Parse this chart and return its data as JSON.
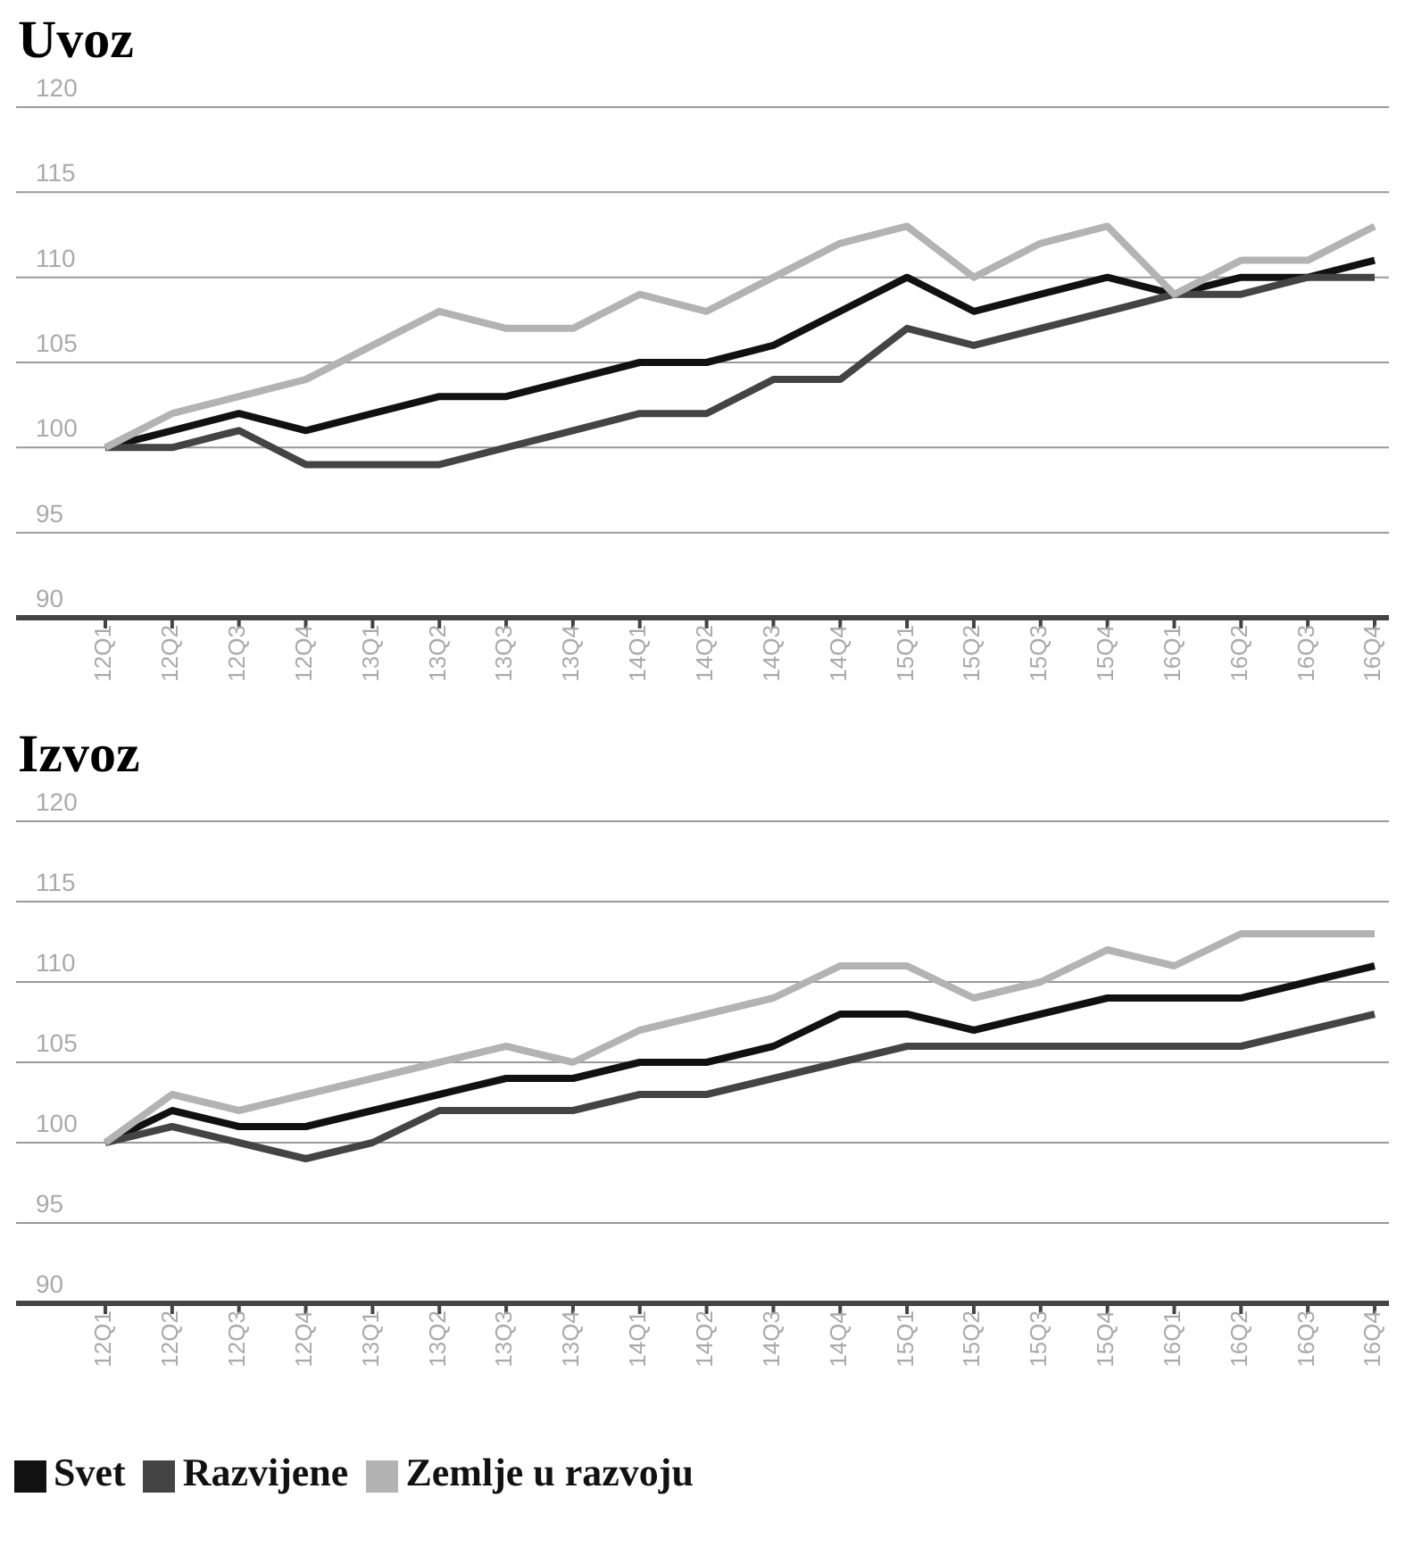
{
  "chart_data": [
    {
      "type": "line",
      "title": "Uvoz",
      "categories": [
        "12Q1",
        "12Q2",
        "12Q3",
        "12Q4",
        "13Q1",
        "13Q2",
        "13Q3",
        "13Q4",
        "14Q1",
        "14Q2",
        "14Q3",
        "14Q4",
        "15Q1",
        "15Q2",
        "15Q3",
        "15Q4",
        "16Q1",
        "16Q2",
        "16Q3",
        "16Q4"
      ],
      "series": [
        {
          "color": "#111111",
          "values": [
            100,
            101,
            102,
            101,
            102,
            103,
            103,
            104,
            105,
            105,
            106,
            108,
            110,
            108,
            109,
            110,
            109,
            110,
            110,
            111
          ]
        },
        {
          "color": "#444444",
          "values": [
            100,
            100,
            101,
            99,
            99,
            99,
            100,
            101,
            102,
            102,
            104,
            104,
            107,
            106,
            107,
            108,
            109,
            109,
            110,
            110
          ]
        },
        {
          "color": "#b3b3b3",
          "values": [
            100,
            102,
            103,
            104,
            106,
            108,
            107,
            107,
            109,
            108,
            110,
            112,
            113,
            110,
            112,
            113,
            109,
            111,
            111,
            113
          ]
        }
      ],
      "ylim": [
        90,
        120
      ],
      "yticks": [
        90,
        95,
        100,
        105,
        110,
        115,
        120
      ],
      "grid": "y",
      "marker": "none",
      "line_style": "solid"
    },
    {
      "type": "line",
      "title": "Izvoz",
      "categories": [
        "12Q1",
        "12Q2",
        "12Q3",
        "12Q4",
        "13Q1",
        "13Q2",
        "13Q3",
        "13Q4",
        "14Q1",
        "14Q2",
        "14Q3",
        "14Q4",
        "15Q1",
        "15Q2",
        "15Q3",
        "15Q4",
        "16Q1",
        "16Q2",
        "16Q3",
        "16Q4"
      ],
      "series": [
        {
          "name": "Svet",
          "color": "#111111",
          "values": [
            100,
            102,
            101,
            101,
            102,
            103,
            104,
            104,
            105,
            105,
            106,
            108,
            108,
            107,
            108,
            109,
            109,
            109,
            110,
            111
          ]
        },
        {
          "name": "Razvijene",
          "color": "#444444",
          "values": [
            100,
            101,
            100,
            99,
            100,
            102,
            102,
            102,
            103,
            103,
            104,
            105,
            106,
            106,
            106,
            106,
            106,
            106,
            107,
            108
          ]
        },
        {
          "name": "Zemlje u razvoju",
          "color": "#b3b3b3",
          "values": [
            100,
            103,
            102,
            103,
            104,
            105,
            106,
            105,
            107,
            108,
            109,
            111,
            111,
            109,
            110,
            112,
            111,
            113,
            113,
            113
          ]
        }
      ],
      "ylim": [
        90,
        120
      ],
      "yticks": [
        90,
        95,
        100,
        105,
        110,
        115,
        120
      ],
      "grid": "y",
      "marker": "none",
      "line_style": "solid",
      "legend": "bottom left"
    }
  ]
}
